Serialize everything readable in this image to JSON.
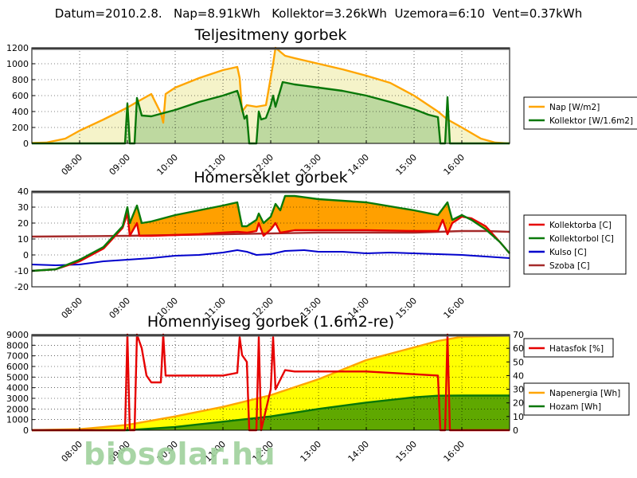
{
  "header": "Datum=2010.2.8.   Nap=8.91kWh   Kollektor=3.26kWh  Uzemora=6:10  Vent=0.37kWh",
  "watermark": "biosolar.hu",
  "colors": {
    "nap": "#ffa500",
    "nap_fill": "#f5f3c9",
    "kollektor": "#087708",
    "kollektor_fill": "#bed9a0",
    "red": "#e60000",
    "green": "#0a7a0a",
    "blue": "#0000cc",
    "brown": "#a52a2a",
    "orange_fill": "#ffa000",
    "yellow_fill": "#ffff00",
    "green_fill": "#5fa800"
  },
  "chart_data": [
    {
      "type": "area",
      "title": "Teljesitmeny gorbek",
      "x_ticks": [
        "08:00",
        "09:00",
        "10:00",
        "11:00",
        "12:00",
        "13:00",
        "14:00",
        "15:00",
        "16:00"
      ],
      "xlim": [
        7.0,
        17.0
      ],
      "ylim": [
        0,
        1200
      ],
      "y_ticks": [
        0,
        200,
        400,
        600,
        800,
        1000,
        1200
      ],
      "grid": true,
      "legend": "right",
      "series": [
        {
          "name": "Nap [W/m2]",
          "key": "nap",
          "points": [
            [
              7.0,
              5
            ],
            [
              7.3,
              10
            ],
            [
              7.7,
              60
            ],
            [
              8.0,
              160
            ],
            [
              8.5,
              300
            ],
            [
              9.0,
              450
            ],
            [
              9.2,
              520
            ],
            [
              9.5,
              620
            ],
            [
              9.7,
              380
            ],
            [
              9.75,
              260
            ],
            [
              9.8,
              620
            ],
            [
              10.0,
              700
            ],
            [
              10.5,
              820
            ],
            [
              11.0,
              920
            ],
            [
              11.3,
              960
            ],
            [
              11.35,
              820
            ],
            [
              11.4,
              400
            ],
            [
              11.5,
              480
            ],
            [
              11.7,
              460
            ],
            [
              11.9,
              480
            ],
            [
              12.05,
              1000
            ],
            [
              12.1,
              1200
            ],
            [
              12.3,
              1100
            ],
            [
              12.5,
              1070
            ],
            [
              13.0,
              1000
            ],
            [
              13.5,
              930
            ],
            [
              14.0,
              850
            ],
            [
              14.5,
              760
            ],
            [
              15.0,
              600
            ],
            [
              15.3,
              480
            ],
            [
              15.5,
              400
            ],
            [
              15.7,
              300
            ],
            [
              16.0,
              200
            ],
            [
              16.4,
              60
            ],
            [
              16.7,
              10
            ],
            [
              17.0,
              0
            ]
          ]
        },
        {
          "name": "Kollektor [W/1.6m2]",
          "key": "kollektor",
          "points": [
            [
              7.0,
              0
            ],
            [
              8.95,
              0
            ],
            [
              9.0,
              500
            ],
            [
              9.05,
              0
            ],
            [
              9.15,
              0
            ],
            [
              9.2,
              570
            ],
            [
              9.3,
              350
            ],
            [
              9.5,
              340
            ],
            [
              10.0,
              420
            ],
            [
              10.5,
              520
            ],
            [
              11.0,
              600
            ],
            [
              11.3,
              660
            ],
            [
              11.35,
              560
            ],
            [
              11.45,
              310
            ],
            [
              11.5,
              350
            ],
            [
              11.55,
              0
            ],
            [
              11.7,
              0
            ],
            [
              11.75,
              400
            ],
            [
              11.8,
              300
            ],
            [
              11.9,
              320
            ],
            [
              12.0,
              480
            ],
            [
              12.05,
              600
            ],
            [
              12.1,
              460
            ],
            [
              12.25,
              770
            ],
            [
              12.5,
              740
            ],
            [
              13.0,
              700
            ],
            [
              13.5,
              660
            ],
            [
              14.0,
              600
            ],
            [
              14.5,
              520
            ],
            [
              15.0,
              430
            ],
            [
              15.3,
              360
            ],
            [
              15.5,
              330
            ],
            [
              15.55,
              0
            ],
            [
              15.65,
              0
            ],
            [
              15.7,
              580
            ],
            [
              15.75,
              0
            ],
            [
              17.0,
              0
            ]
          ]
        }
      ]
    },
    {
      "type": "line",
      "title": "Homerseklet gorbek",
      "x_ticks": [
        "08:00",
        "09:00",
        "10:00",
        "11:00",
        "12:00",
        "13:00",
        "14:00",
        "15:00",
        "16:00"
      ],
      "xlim": [
        7.0,
        17.0
      ],
      "ylim": [
        -20,
        40
      ],
      "y_ticks": [
        -20,
        -10,
        0,
        10,
        20,
        30,
        40
      ],
      "grid": true,
      "legend": "right",
      "series": [
        {
          "name": "Kollektorba [C]",
          "key": "red",
          "points": [
            [
              7.0,
              -10
            ],
            [
              7.5,
              -9
            ],
            [
              8.0,
              -4
            ],
            [
              8.5,
              4
            ],
            [
              8.9,
              17
            ],
            [
              9.0,
              26
            ],
            [
              9.05,
              12
            ],
            [
              9.2,
              20
            ],
            [
              9.25,
              12
            ],
            [
              9.5,
              12
            ],
            [
              10.0,
              12.5
            ],
            [
              10.5,
              13
            ],
            [
              11.0,
              14
            ],
            [
              11.3,
              14.5
            ],
            [
              11.5,
              14
            ],
            [
              11.7,
              15
            ],
            [
              11.75,
              20
            ],
            [
              11.85,
              12
            ],
            [
              12.0,
              16
            ],
            [
              12.1,
              20
            ],
            [
              12.2,
              14
            ],
            [
              12.5,
              15.5
            ],
            [
              13.0,
              15.5
            ],
            [
              14.0,
              15.5
            ],
            [
              15.0,
              15
            ],
            [
              15.5,
              15
            ],
            [
              15.6,
              22
            ],
            [
              15.7,
              13
            ],
            [
              15.8,
              20
            ],
            [
              16.0,
              24
            ],
            [
              16.2,
              23
            ],
            [
              16.5,
              18
            ],
            [
              16.8,
              8
            ],
            [
              17.0,
              1
            ]
          ]
        },
        {
          "name": "Kollektorbol [C]",
          "key": "green",
          "points": [
            [
              7.0,
              -10
            ],
            [
              7.5,
              -9
            ],
            [
              8.0,
              -3
            ],
            [
              8.5,
              5
            ],
            [
              8.9,
              18
            ],
            [
              9.0,
              30
            ],
            [
              9.05,
              20
            ],
            [
              9.2,
              31
            ],
            [
              9.3,
              20
            ],
            [
              9.5,
              21
            ],
            [
              10.0,
              25
            ],
            [
              10.5,
              28
            ],
            [
              11.0,
              31
            ],
            [
              11.3,
              33
            ],
            [
              11.4,
              18
            ],
            [
              11.5,
              18
            ],
            [
              11.7,
              22
            ],
            [
              11.75,
              26
            ],
            [
              11.85,
              20
            ],
            [
              12.0,
              24
            ],
            [
              12.1,
              32
            ],
            [
              12.2,
              28
            ],
            [
              12.3,
              37
            ],
            [
              12.5,
              37
            ],
            [
              13.0,
              35
            ],
            [
              14.0,
              33
            ],
            [
              15.0,
              28
            ],
            [
              15.5,
              25
            ],
            [
              15.7,
              33
            ],
            [
              15.8,
              22
            ],
            [
              16.0,
              25
            ],
            [
              16.2,
              22
            ],
            [
              16.5,
              16
            ],
            [
              16.8,
              8
            ],
            [
              17.0,
              1
            ]
          ]
        },
        {
          "name": "Kulso [C]",
          "key": "blue",
          "points": [
            [
              7.0,
              -6
            ],
            [
              7.5,
              -6.5
            ],
            [
              8.0,
              -6
            ],
            [
              8.5,
              -4
            ],
            [
              9.0,
              -3
            ],
            [
              9.5,
              -2
            ],
            [
              10.0,
              -0.5
            ],
            [
              10.5,
              0
            ],
            [
              11.0,
              1.5
            ],
            [
              11.3,
              3
            ],
            [
              11.5,
              2
            ],
            [
              11.7,
              0
            ],
            [
              12.0,
              0.5
            ],
            [
              12.3,
              2.5
            ],
            [
              12.7,
              3
            ],
            [
              13.0,
              2
            ],
            [
              13.5,
              2
            ],
            [
              14.0,
              1
            ],
            [
              14.5,
              1.5
            ],
            [
              15.0,
              1
            ],
            [
              15.5,
              0.5
            ],
            [
              16.0,
              0
            ],
            [
              16.5,
              -1
            ],
            [
              17.0,
              -2
            ]
          ]
        },
        {
          "name": "Szoba [C]",
          "key": "brown",
          "points": [
            [
              7.0,
              11.5
            ],
            [
              9.0,
              12
            ],
            [
              11.0,
              13
            ],
            [
              13.0,
              14
            ],
            [
              15.0,
              14
            ],
            [
              16.0,
              15
            ],
            [
              16.5,
              15
            ],
            [
              17.0,
              14.5
            ]
          ]
        }
      ]
    },
    {
      "type": "line",
      "title": "Homennyiseg gorbek (1.6m2-re)",
      "x_ticks": [
        "08:00",
        "09:00",
        "10:00",
        "11:00",
        "12:00",
        "13:00",
        "14:00",
        "15:00",
        "16:00"
      ],
      "xlim": [
        7.0,
        17.0
      ],
      "ylim": [
        0,
        9000
      ],
      "y_ticks": [
        0,
        1000,
        2000,
        3000,
        4000,
        5000,
        6000,
        7000,
        8000,
        9000
      ],
      "y2lim": [
        0,
        70
      ],
      "y2_ticks": [
        0,
        10,
        20,
        30,
        40,
        50,
        60,
        70
      ],
      "grid": true,
      "legend": "right",
      "series": [
        {
          "name": "Hatasfok [%]",
          "key": "red",
          "axis": "right",
          "points": [
            [
              7.0,
              0
            ],
            [
              8.95,
              0
            ],
            [
              9.0,
              70
            ],
            [
              9.05,
              0
            ],
            [
              9.15,
              0
            ],
            [
              9.2,
              70
            ],
            [
              9.3,
              60
            ],
            [
              9.4,
              40
            ],
            [
              9.5,
              35
            ],
            [
              9.7,
              35
            ],
            [
              9.75,
              70
            ],
            [
              9.8,
              40
            ],
            [
              10.0,
              40
            ],
            [
              10.5,
              40
            ],
            [
              11.0,
              40
            ],
            [
              11.3,
              42
            ],
            [
              11.35,
              68
            ],
            [
              11.4,
              55
            ],
            [
              11.5,
              50
            ],
            [
              11.55,
              0
            ],
            [
              11.7,
              0
            ],
            [
              11.75,
              68
            ],
            [
              11.8,
              0
            ],
            [
              12.0,
              30
            ],
            [
              12.05,
              68
            ],
            [
              12.1,
              30
            ],
            [
              12.3,
              44
            ],
            [
              12.5,
              43
            ],
            [
              13.0,
              43
            ],
            [
              14.0,
              43
            ],
            [
              15.0,
              41
            ],
            [
              15.5,
              40
            ],
            [
              15.55,
              0
            ],
            [
              15.65,
              0
            ],
            [
              15.7,
              70
            ],
            [
              15.75,
              0
            ],
            [
              17.0,
              0
            ]
          ]
        },
        {
          "name": "Napenergia [Wh]",
          "key": "nap",
          "axis": "left",
          "points": [
            [
              7.0,
              0
            ],
            [
              8.0,
              100
            ],
            [
              9.0,
              500
            ],
            [
              10.0,
              1300
            ],
            [
              11.0,
              2200
            ],
            [
              12.0,
              3300
            ],
            [
              13.0,
              4800
            ],
            [
              14.0,
              6600
            ],
            [
              15.0,
              7800
            ],
            [
              15.5,
              8400
            ],
            [
              16.0,
              8800
            ],
            [
              17.0,
              8900
            ]
          ]
        },
        {
          "name": "Hozam [Wh]",
          "key": "kollektor",
          "axis": "left",
          "points": [
            [
              7.0,
              0
            ],
            [
              9.0,
              0
            ],
            [
              10.0,
              300
            ],
            [
              11.0,
              800
            ],
            [
              12.0,
              1300
            ],
            [
              13.0,
              2000
            ],
            [
              14.0,
              2600
            ],
            [
              15.0,
              3100
            ],
            [
              15.5,
              3250
            ],
            [
              16.0,
              3260
            ],
            [
              17.0,
              3260
            ]
          ]
        }
      ]
    }
  ]
}
